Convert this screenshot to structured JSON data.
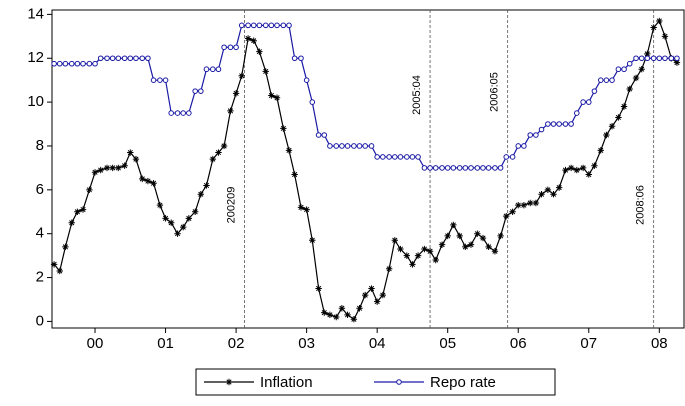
{
  "chart_data": {
    "type": "line",
    "x": [
      1999.92,
      2000.0,
      2000.08,
      2000.17,
      2000.25,
      2000.33,
      2000.42,
      2000.5,
      2000.58,
      2000.67,
      2000.75,
      2000.83,
      2000.92,
      2001.0,
      2001.08,
      2001.17,
      2001.25,
      2001.33,
      2001.42,
      2001.5,
      2001.58,
      2001.67,
      2001.75,
      2001.83,
      2001.92,
      2002.0,
      2002.08,
      2002.17,
      2002.25,
      2002.33,
      2002.42,
      2002.5,
      2002.58,
      2002.67,
      2002.75,
      2002.83,
      2002.92,
      2003.0,
      2003.08,
      2003.17,
      2003.25,
      2003.33,
      2003.42,
      2003.5,
      2003.58,
      2003.67,
      2003.75,
      2003.83,
      2003.92,
      2004.0,
      2004.08,
      2004.17,
      2004.25,
      2004.33,
      2004.42,
      2004.5,
      2004.58,
      2004.67,
      2004.75,
      2004.83,
      2004.92,
      2005.0,
      2005.08,
      2005.17,
      2005.25,
      2005.33,
      2005.42,
      2005.5,
      2005.58,
      2005.67,
      2005.75,
      2005.83,
      2005.92,
      2006.0,
      2006.08,
      2006.17,
      2006.25,
      2006.33,
      2006.42,
      2006.5,
      2006.58,
      2006.67,
      2006.75,
      2006.83,
      2006.92,
      2007.0,
      2007.08,
      2007.17,
      2007.25,
      2007.33,
      2007.42,
      2007.5,
      2007.58,
      2007.67,
      2007.75,
      2007.83,
      2007.92,
      2008.0,
      2008.08,
      2008.17,
      2008.25,
      2008.33,
      2008.42,
      2008.5,
      2008.58,
      2008.67,
      2008.75
    ],
    "series": [
      {
        "name": "Inflation",
        "color": "#000000",
        "marker": "asterisk",
        "values": [
          2.6,
          2.3,
          3.4,
          4.5,
          5.0,
          5.1,
          6.0,
          6.8,
          6.9,
          7.0,
          7.0,
          7.0,
          7.1,
          7.7,
          7.4,
          6.5,
          6.4,
          6.3,
          5.3,
          4.7,
          4.5,
          4.0,
          4.3,
          4.7,
          5.0,
          5.8,
          6.2,
          7.4,
          7.7,
          8.0,
          9.6,
          10.4,
          11.2,
          12.9,
          12.8,
          12.3,
          11.4,
          10.3,
          10.2,
          8.8,
          7.8,
          6.7,
          5.2,
          5.1,
          3.7,
          1.5,
          0.4,
          0.3,
          0.2,
          0.6,
          0.3,
          0.1,
          0.6,
          1.2,
          1.5,
          0.9,
          1.2,
          2.4,
          3.7,
          3.3,
          3.0,
          2.6,
          3.0,
          3.3,
          3.2,
          2.8,
          3.5,
          3.9,
          4.4,
          3.9,
          3.4,
          3.5,
          4.0,
          3.8,
          3.4,
          3.2,
          3.9,
          4.8,
          5.0,
          5.3,
          5.3,
          5.4,
          5.4,
          5.8,
          6.0,
          5.8,
          6.1,
          6.9,
          7.0,
          6.9,
          7.0,
          6.7,
          7.1,
          7.8,
          8.5,
          8.9,
          9.3,
          9.8,
          10.6,
          11.1,
          11.5,
          12.2,
          13.4,
          13.7,
          13.0,
          12.0,
          11.8
        ]
      },
      {
        "name": "Repo rate",
        "color": "#1a1aa6",
        "marker": "circle",
        "values": [
          11.75,
          11.75,
          11.75,
          11.75,
          11.75,
          11.75,
          11.75,
          11.75,
          12,
          12,
          12,
          12,
          12,
          12,
          12,
          12,
          12,
          11,
          11,
          11,
          9.5,
          9.5,
          9.5,
          9.5,
          10.5,
          10.5,
          11.5,
          11.5,
          11.5,
          12.5,
          12.5,
          12.5,
          13.5,
          13.5,
          13.5,
          13.5,
          13.5,
          13.5,
          13.5,
          13.5,
          13.5,
          12,
          12,
          11,
          10,
          8.5,
          8.5,
          8,
          8,
          8,
          8,
          8,
          8,
          8,
          8,
          7.5,
          7.5,
          7.5,
          7.5,
          7.5,
          7.5,
          7.5,
          7.5,
          7,
          7,
          7,
          7,
          7,
          7,
          7,
          7,
          7,
          7,
          7,
          7,
          7,
          7,
          7.5,
          7.5,
          8,
          8,
          8.5,
          8.5,
          8.75,
          9,
          9,
          9,
          9,
          9,
          9.5,
          10,
          10,
          10.5,
          11,
          11,
          11,
          11.5,
          11.5,
          11.75,
          12,
          12,
          12,
          12,
          12,
          12,
          12,
          12
        ]
      }
    ],
    "xlim": [
      1999.89,
      2008.85
    ],
    "xticks": [
      {
        "value": 2000.5,
        "label": "00"
      },
      {
        "value": 2001.5,
        "label": "01"
      },
      {
        "value": 2002.5,
        "label": "02"
      },
      {
        "value": 2003.5,
        "label": "03"
      },
      {
        "value": 2004.5,
        "label": "04"
      },
      {
        "value": 2005.5,
        "label": "05"
      },
      {
        "value": 2006.5,
        "label": "06"
      },
      {
        "value": 2007.5,
        "label": "07"
      },
      {
        "value": 2008.5,
        "label": "08"
      }
    ],
    "ylim": [
      -0.3,
      14.2
    ],
    "yticks": [
      0,
      2,
      4,
      6,
      8,
      10,
      12,
      14
    ],
    "annotations": [
      {
        "x": 2002.62,
        "label": "200209"
      },
      {
        "x": 2005.25,
        "label": "2005:04"
      },
      {
        "x": 2006.35,
        "label": "2006:05"
      },
      {
        "x": 2008.42,
        "label": "2008:06"
      }
    ]
  }
}
